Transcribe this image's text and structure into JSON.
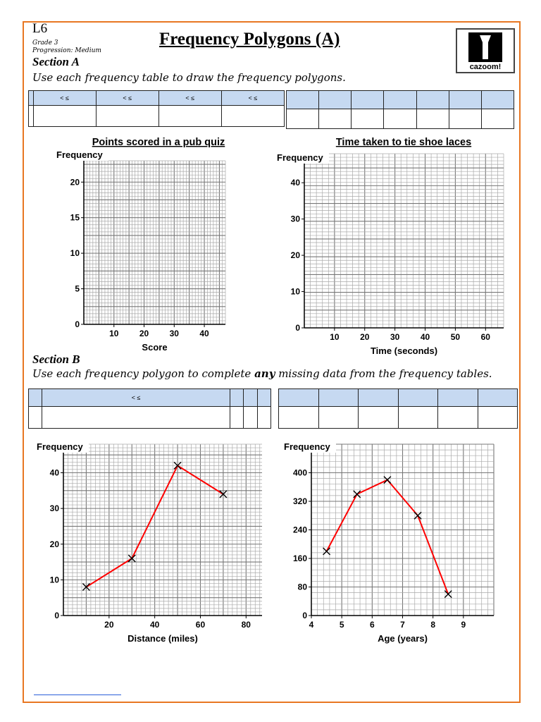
{
  "header": {
    "level": "L6",
    "grade": "Grade 3",
    "progression": "Progression: Medium",
    "title": "Frequency Polygons (A)",
    "logo_text": "cazoom!"
  },
  "section_a": {
    "heading": "Section A",
    "instruction": "Use each frequency table to draw the frequency polygons.",
    "table1_headers": [
      "",
      "< ≤",
      "< ≤",
      "< ≤",
      "< ≤"
    ],
    "table2_cols": 7
  },
  "section_b": {
    "heading": "Section B",
    "instruction_pre": "Use each frequency polygon to complete ",
    "instruction_bold": "any",
    "instruction_post": " missing data from the frequency tables.",
    "table1_headers": [
      "",
      "< ≤",
      "",
      "",
      ""
    ],
    "table2_cols": 6
  },
  "colors": {
    "border": "#e87722",
    "table_header": "#c6d9f1",
    "line": "#ff0000"
  },
  "chart_data": [
    {
      "type": "line",
      "title": "Points scored in a pub quiz",
      "xlabel": "Score",
      "ylabel": "Frequency",
      "xticks": [
        10,
        20,
        30,
        40
      ],
      "yticks": [
        0,
        5,
        10,
        15,
        20
      ],
      "xlim": [
        0,
        47
      ],
      "ylim": [
        0,
        23
      ],
      "grid": true,
      "x": [],
      "y": []
    },
    {
      "type": "line",
      "title": "Time taken to tie shoe laces",
      "xlabel": "Time (seconds)",
      "ylabel": "Frequency",
      "xticks": [
        10,
        20,
        30,
        40,
        50,
        60
      ],
      "yticks": [
        0,
        10,
        20,
        30,
        40
      ],
      "xlim": [
        0,
        66
      ],
      "ylim": [
        0,
        48
      ],
      "grid": true,
      "x": [],
      "y": []
    },
    {
      "type": "line",
      "title": "",
      "xlabel": "Distance (miles)",
      "ylabel": "Frequency",
      "xticks": [
        20,
        40,
        60,
        80
      ],
      "yticks": [
        0,
        10,
        20,
        30,
        40
      ],
      "xlim": [
        0,
        87
      ],
      "ylim": [
        0,
        48
      ],
      "grid": true,
      "x": [
        10,
        30,
        50,
        70
      ],
      "y": [
        8,
        16,
        42,
        34
      ]
    },
    {
      "type": "line",
      "title": "",
      "xlabel": "Age (years)",
      "ylabel": "Frequency",
      "xticks": [
        4,
        5,
        6,
        7,
        8,
        9
      ],
      "yticks": [
        0,
        80,
        160,
        240,
        320,
        400
      ],
      "xlim": [
        4,
        10
      ],
      "ylim": [
        0,
        480
      ],
      "grid": true,
      "x": [
        4.5,
        5.5,
        6.5,
        7.5,
        8.5
      ],
      "y": [
        180,
        340,
        380,
        280,
        60
      ]
    }
  ]
}
